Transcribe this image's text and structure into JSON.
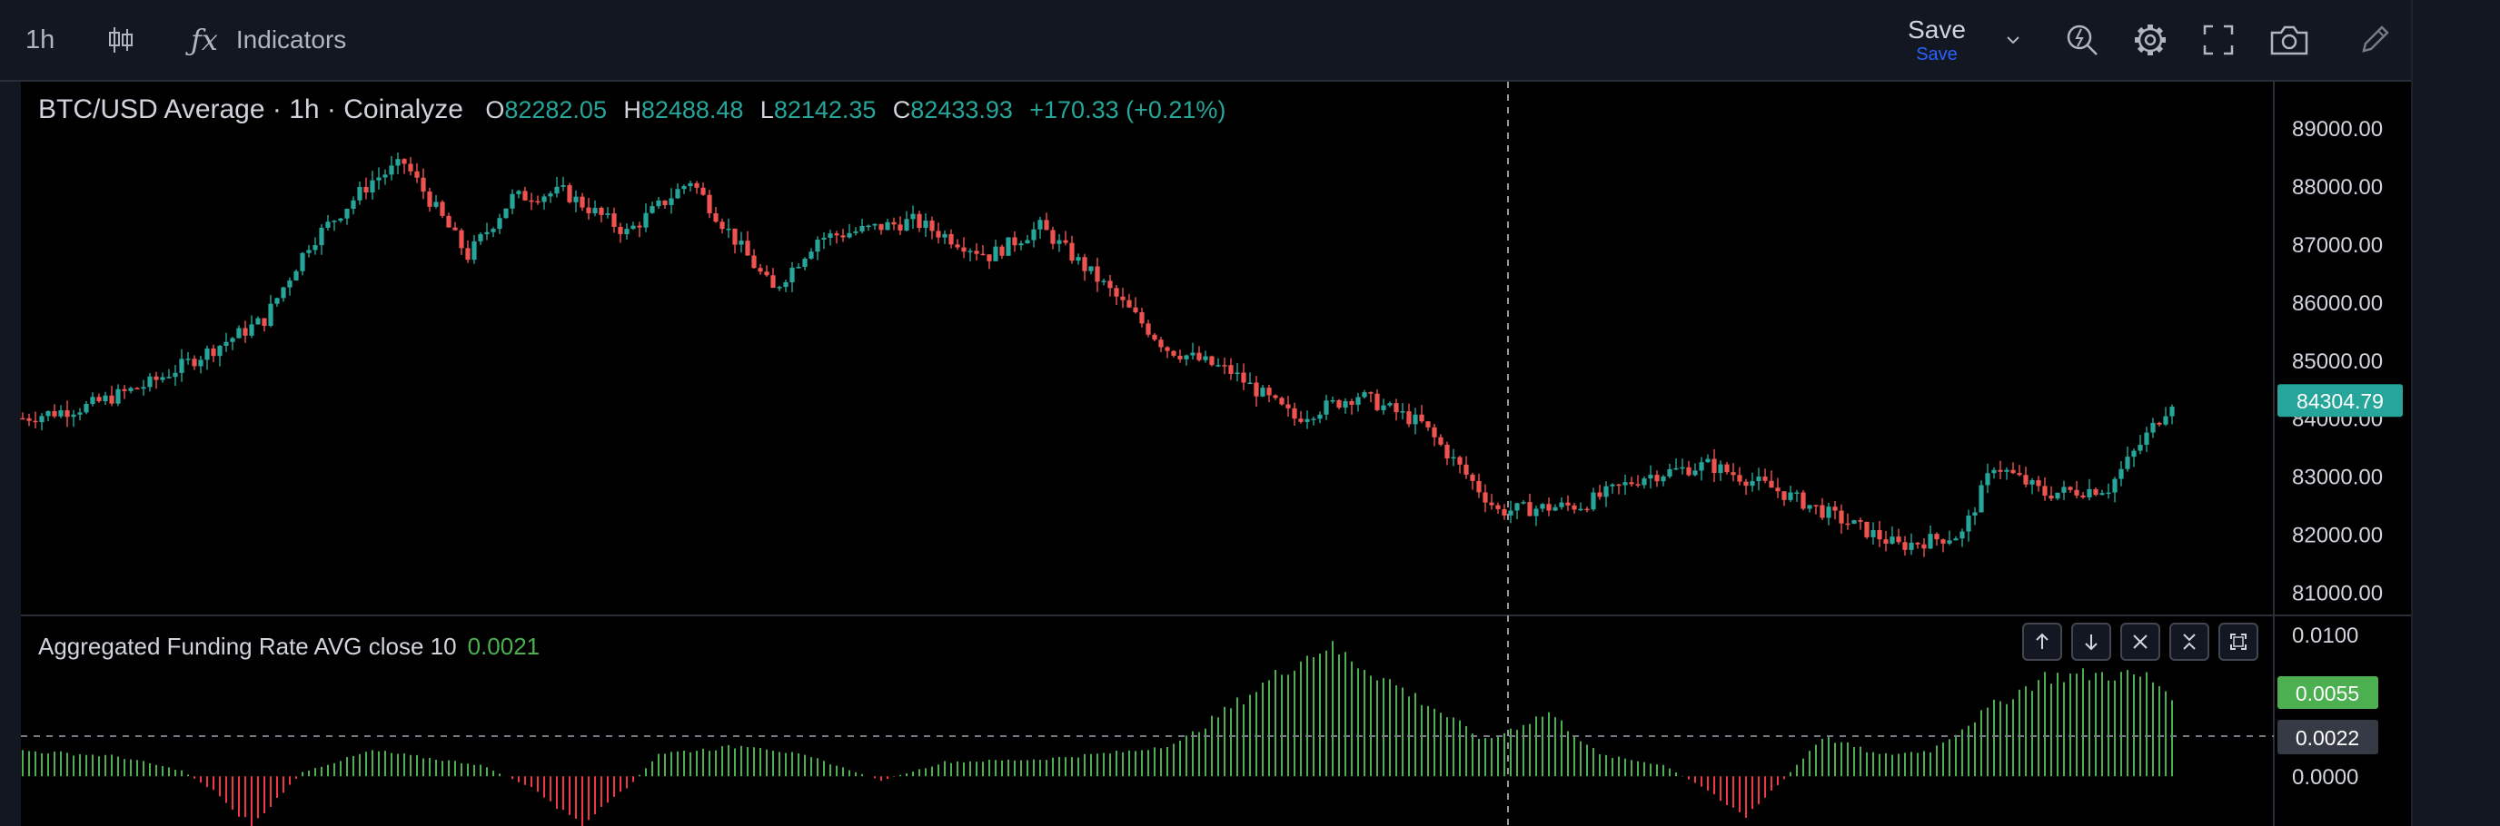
{
  "toolbar": {
    "timeframe": "1h",
    "indicators_label": "Indicators",
    "save_label": "Save",
    "save_sub_label": "Save"
  },
  "legend": {
    "symbol": "BTC/USD Average · 1h · Coinalyze",
    "open_key": "O",
    "open": "82282.05",
    "high_key": "H",
    "high": "82488.48",
    "low_key": "L",
    "low": "82142.35",
    "close_key": "C",
    "close": "82433.93",
    "change": "+170.33 (+0.21%)"
  },
  "indicator": {
    "name": "Aggregated Funding Rate AVG close 10",
    "value": "0.0021"
  },
  "colors": {
    "up": "#26a69a",
    "down": "#ef5350",
    "hist_up": "#4caf50",
    "hist_down": "#f23645",
    "price_tag": "#26a69a",
    "ind_tag": "#4caf50",
    "ind_tag_dark": "#363a45"
  },
  "icons": [
    "candles-icon",
    "fx-icon",
    "chevron-down-icon",
    "quick-search-icon",
    "gear-icon",
    "fullscreen-icon",
    "camera-icon",
    "pencil-icon",
    "arrow-up-icon",
    "arrow-down-icon",
    "close-icon",
    "collapse-icon",
    "maximize-icon"
  ],
  "chart_data": [
    {
      "type": "candlestick",
      "title": "BTC/USD Average · 1h · Coinalyze",
      "y_ticks": [
        "89000.00",
        "88000.00",
        "87000.00",
        "86000.00",
        "85000.00",
        "84000.00",
        "83000.00",
        "82000.00",
        "81000.00"
      ],
      "ylim": [
        80600,
        89800
      ],
      "last_price_label": "84304.79",
      "anchors": [
        [
          0,
          84000
        ],
        [
          10,
          84200
        ],
        [
          20,
          84600
        ],
        [
          30,
          85200
        ],
        [
          38,
          85700
        ],
        [
          45,
          87000
        ],
        [
          55,
          88100
        ],
        [
          60,
          88400
        ],
        [
          70,
          86800
        ],
        [
          77,
          87800
        ],
        [
          85,
          87900
        ],
        [
          95,
          87200
        ],
        [
          105,
          88100
        ],
        [
          118,
          86200
        ],
        [
          125,
          87100
        ],
        [
          140,
          87400
        ],
        [
          152,
          86800
        ],
        [
          160,
          87300
        ],
        [
          170,
          86300
        ],
        [
          180,
          85200
        ],
        [
          190,
          84800
        ],
        [
          200,
          84000
        ],
        [
          210,
          84400
        ],
        [
          220,
          83900
        ],
        [
          232,
          82400
        ],
        [
          245,
          82500
        ],
        [
          255,
          83000
        ],
        [
          265,
          83200
        ],
        [
          275,
          82800
        ],
        [
          285,
          82300
        ],
        [
          295,
          81800
        ],
        [
          305,
          82000
        ],
        [
          310,
          83200
        ],
        [
          318,
          82700
        ],
        [
          328,
          82800
        ],
        [
          338,
          84300
        ]
      ]
    },
    {
      "type": "bar",
      "title": "Aggregated Funding Rate AVG close 10",
      "y_ticks": [
        "0.0100",
        "0.0000"
      ],
      "ylim": [
        -0.0035,
        0.0112
      ],
      "current_value_label": "0.0055",
      "reference_label": "0.0022",
      "anchors": [
        [
          0,
          0.0018
        ],
        [
          15,
          0.0014
        ],
        [
          25,
          0.0004
        ],
        [
          30,
          -0.001
        ],
        [
          36,
          -0.0035
        ],
        [
          44,
          0.0003
        ],
        [
          55,
          0.0018
        ],
        [
          72,
          0.0008
        ],
        [
          80,
          -0.0008
        ],
        [
          88,
          -0.0035
        ],
        [
          96,
          -0.0004
        ],
        [
          100,
          0.0016
        ],
        [
          115,
          0.0022
        ],
        [
          125,
          0.0012
        ],
        [
          135,
          -0.0003
        ],
        [
          145,
          0.001
        ],
        [
          160,
          0.0012
        ],
        [
          175,
          0.0018
        ],
        [
          182,
          0.0024
        ],
        [
          192,
          0.0055
        ],
        [
          200,
          0.008
        ],
        [
          205,
          0.0092
        ],
        [
          213,
          0.0072
        ],
        [
          222,
          0.0048
        ],
        [
          230,
          0.0025
        ],
        [
          240,
          0.0045
        ],
        [
          248,
          0.0015
        ],
        [
          258,
          0.0008
        ],
        [
          265,
          -0.001
        ],
        [
          271,
          -0.0028
        ],
        [
          277,
          -0.0002
        ],
        [
          283,
          0.0028
        ],
        [
          292,
          0.0015
        ],
        [
          300,
          0.0018
        ],
        [
          310,
          0.005
        ],
        [
          318,
          0.007
        ],
        [
          328,
          0.0072
        ],
        [
          334,
          0.007
        ],
        [
          338,
          0.0058
        ]
      ]
    }
  ]
}
